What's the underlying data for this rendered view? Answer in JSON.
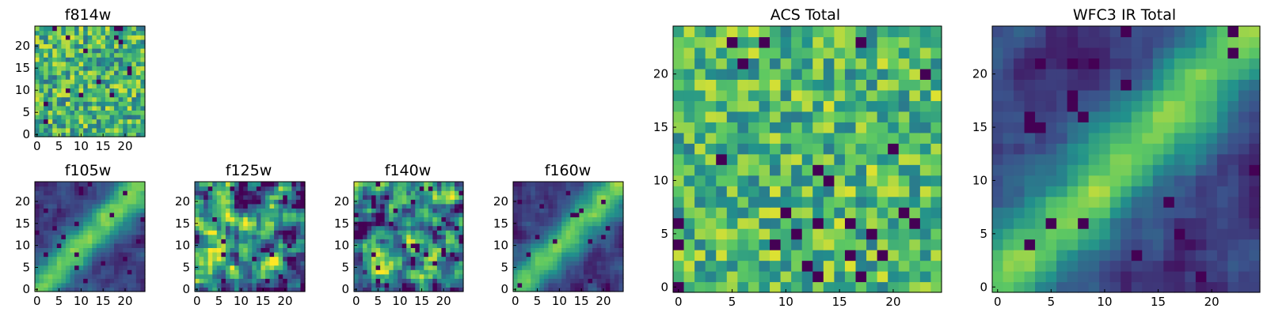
{
  "chart_data": [
    {
      "type": "heatmap",
      "title": "f814w",
      "grid_size": 25,
      "colormap": "viridis",
      "xticks": [
        "0",
        "5",
        "10",
        "15",
        "20"
      ],
      "yticks": [
        "0",
        "5",
        "10",
        "15",
        "20"
      ],
      "pattern": "noise",
      "seed": 11,
      "texture_range": [
        0.35,
        0.95
      ]
    },
    {
      "type": "heatmap",
      "title": "ACS Total",
      "grid_size": 25,
      "colormap": "viridis",
      "xticks": [
        "0",
        "5",
        "10",
        "15",
        "20"
      ],
      "yticks": [
        "0",
        "5",
        "10",
        "15",
        "20"
      ],
      "pattern": "noise",
      "seed": 23,
      "texture_range": [
        0.4,
        0.95
      ]
    },
    {
      "type": "heatmap",
      "title": "WFC3 IR Total",
      "grid_size": 25,
      "colormap": "viridis",
      "xticks": [
        "0",
        "5",
        "10",
        "15",
        "20"
      ],
      "yticks": [
        "0",
        "5",
        "10",
        "15",
        "20"
      ],
      "pattern": "diagonal-band",
      "seed": 37,
      "texture_range": [
        0.25,
        1.0
      ]
    },
    {
      "type": "heatmap",
      "title": "f105w",
      "grid_size": 25,
      "colormap": "viridis",
      "xticks": [
        "0",
        "5",
        "10",
        "15",
        "20"
      ],
      "yticks": [
        "0",
        "5",
        "10",
        "15",
        "20"
      ],
      "pattern": "diagonal-band",
      "seed": 41,
      "texture_range": [
        0.3,
        1.0
      ]
    },
    {
      "type": "heatmap",
      "title": "f125w",
      "grid_size": 25,
      "colormap": "viridis",
      "xticks": [
        "0",
        "5",
        "10",
        "15",
        "20"
      ],
      "yticks": [
        "0",
        "5",
        "10",
        "15",
        "20"
      ],
      "pattern": "blobby",
      "seed": 53,
      "texture_range": [
        0.3,
        1.0
      ]
    },
    {
      "type": "heatmap",
      "title": "f140w",
      "grid_size": 25,
      "colormap": "viridis",
      "xticks": [
        "0",
        "5",
        "10",
        "15",
        "20"
      ],
      "yticks": [
        "0",
        "5",
        "10",
        "15",
        "20"
      ],
      "pattern": "blobby",
      "seed": 67,
      "texture_range": [
        0.3,
        1.0
      ]
    },
    {
      "type": "heatmap",
      "title": "f160w",
      "grid_size": 25,
      "colormap": "viridis",
      "xticks": [
        "0",
        "5",
        "10",
        "15",
        "20"
      ],
      "yticks": [
        "0",
        "5",
        "10",
        "15",
        "20"
      ],
      "pattern": "diagonal-band",
      "seed": 79,
      "texture_range": [
        0.3,
        1.0
      ]
    }
  ]
}
